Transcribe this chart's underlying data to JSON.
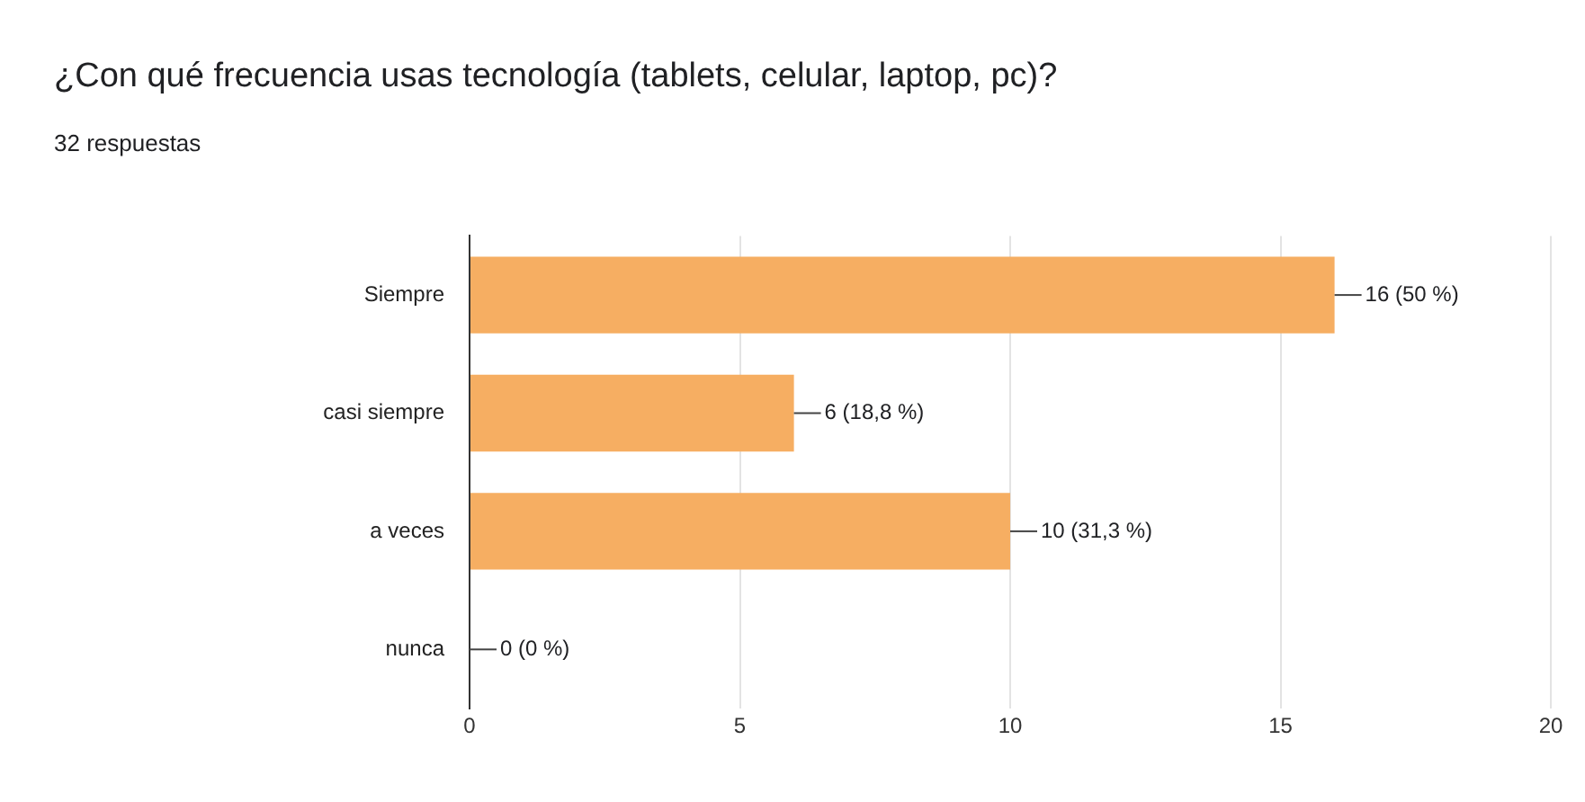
{
  "chart_data": {
    "type": "bar",
    "orientation": "horizontal",
    "title": "¿Con qué frecuencia usas tecnología (tablets, celular, laptop, pc)?",
    "subtitle": "32 respuestas",
    "categories": [
      "Siempre",
      "casi siempre",
      "a veces",
      "nunca"
    ],
    "values": [
      16,
      6,
      10,
      0
    ],
    "value_labels": [
      "16 (50 %)",
      "6 (18,8 %)",
      "10 (31,3 %)",
      "0 (0 %)"
    ],
    "color": "#f6ae62",
    "xlim": [
      0,
      20
    ],
    "xticks": [
      0,
      5,
      10,
      15,
      20
    ],
    "grid": "x",
    "legend": false
  }
}
